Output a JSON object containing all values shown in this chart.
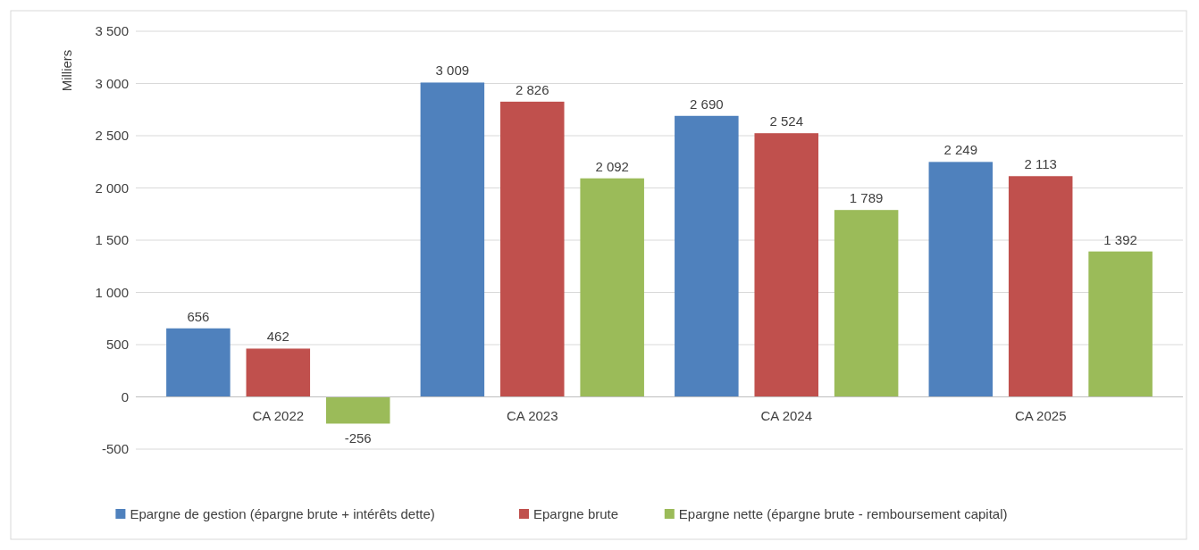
{
  "chart_data": {
    "type": "bar",
    "ylabel": "Milliers",
    "categories": [
      "CA 2022",
      "CA 2023",
      "CA 2024",
      "CA 2025"
    ],
    "series": [
      {
        "name": "Epargne de gestion (épargne brute + intérêts dette)",
        "color": "#4f81bd",
        "values": [
          656,
          3009,
          2690,
          2249
        ],
        "value_labels": [
          "656",
          "3 009",
          "2 690",
          "2 249"
        ]
      },
      {
        "name": "Epargne brute",
        "color": "#c0504d",
        "values": [
          462,
          2826,
          2524,
          2113
        ],
        "value_labels": [
          "462",
          "2 826",
          "2 524",
          "2 113"
        ]
      },
      {
        "name": "Epargne nette (épargne brute - remboursement capital)",
        "color": "#9bbb59",
        "values": [
          -256,
          2092,
          1789,
          1392
        ],
        "value_labels": [
          "-256",
          "2 092",
          "1 789",
          "1 392"
        ]
      }
    ],
    "ylim": [
      -500,
      3500
    ],
    "yticks": [
      {
        "value": -500,
        "label": "-500"
      },
      0,
      500,
      {
        "value": 1000,
        "label": "1 000"
      },
      {
        "value": 1500,
        "label": "1 500"
      },
      {
        "value": 2000,
        "label": "2 000"
      },
      {
        "value": 2500,
        "label": "2 500"
      },
      {
        "value": 3000,
        "label": "3 000"
      },
      {
        "value": 3500,
        "label": "3 500"
      }
    ],
    "grid": "y",
    "legend": "bottom"
  }
}
